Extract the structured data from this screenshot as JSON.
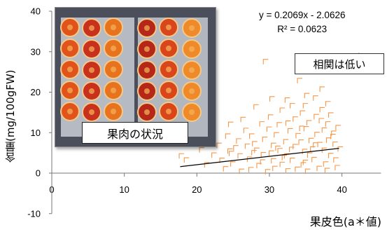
{
  "chart_data": {
    "type": "scatter",
    "ylabel": "含量(mg/100gFW)",
    "xlabel": "果皮色(a＊値)",
    "xlim": [
      0,
      45
    ],
    "ylim": [
      -10,
      40
    ],
    "x_ticks": [
      "0",
      "10",
      "20",
      "30",
      "40"
    ],
    "y_ticks": [
      "-10",
      "0",
      "10",
      "20",
      "30",
      "40"
    ],
    "marker_color": "#f79646",
    "trendline": {
      "equation": "y = 0.2069x - 2.0626",
      "r2": "R² = 0.0623",
      "slope": 0.2069,
      "intercept": -2.0626,
      "x_range": [
        17.7,
        39.6
      ]
    },
    "callout": "相関は低い",
    "photo_label": "果肉の状況",
    "points": [
      [
        29.5,
        27.5
      ],
      [
        34.2,
        22.8
      ],
      [
        37.3,
        20.7
      ],
      [
        30.4,
        18.3
      ],
      [
        32.5,
        18.0
      ],
      [
        35.2,
        19.1
      ],
      [
        36.4,
        18.5
      ],
      [
        33.2,
        16.6
      ],
      [
        28.2,
        16.3
      ],
      [
        35.0,
        16.6
      ],
      [
        38.1,
        17.1
      ],
      [
        31.8,
        15.5
      ],
      [
        34.6,
        14.8
      ],
      [
        37.3,
        15.6
      ],
      [
        26.4,
        13.2
      ],
      [
        30.2,
        13.8
      ],
      [
        33.6,
        13.3
      ],
      [
        36.5,
        13.9
      ],
      [
        38.5,
        14.3
      ],
      [
        24.7,
        12.0
      ],
      [
        29.0,
        12.1
      ],
      [
        32.6,
        12.3
      ],
      [
        35.5,
        12.4
      ],
      [
        38.1,
        12.1
      ],
      [
        22.3,
        10.2
      ],
      [
        26.8,
        10.5
      ],
      [
        30.0,
        10.8
      ],
      [
        32.9,
        10.4
      ],
      [
        35.1,
        10.9
      ],
      [
        37.6,
        10.6
      ],
      [
        39.5,
        11.2
      ],
      [
        24.3,
        9.1
      ],
      [
        27.6,
        9.1
      ],
      [
        31.0,
        9.4
      ],
      [
        34.0,
        9.2
      ],
      [
        36.6,
        9.5
      ],
      [
        38.9,
        9.8
      ],
      [
        21.6,
        8.0
      ],
      [
        25.8,
        7.9
      ],
      [
        29.4,
        8.3
      ],
      [
        32.3,
        7.7
      ],
      [
        35.8,
        8.0
      ],
      [
        38.2,
        8.1
      ],
      [
        23.1,
        6.8
      ],
      [
        27.0,
        6.6
      ],
      [
        30.6,
        6.8
      ],
      [
        33.6,
        6.5
      ],
      [
        36.4,
        6.9
      ],
      [
        39.1,
        7.1
      ],
      [
        20.7,
        5.7
      ],
      [
        24.6,
        5.4
      ],
      [
        28.3,
        5.6
      ],
      [
        31.5,
        5.5
      ],
      [
        34.9,
        5.3
      ],
      [
        37.6,
        5.6
      ],
      [
        39.8,
        5.9
      ],
      [
        22.4,
        4.4
      ],
      [
        26.0,
        4.2
      ],
      [
        29.2,
        4.5
      ],
      [
        32.4,
        4.2
      ],
      [
        35.6,
        4.4
      ],
      [
        38.5,
        4.3
      ],
      [
        18.6,
        3.2
      ],
      [
        23.5,
        3.1
      ],
      [
        27.3,
        3.4
      ],
      [
        30.6,
        3.0
      ],
      [
        33.2,
        3.1
      ],
      [
        36.2,
        3.3
      ],
      [
        39.2,
        3.2
      ],
      [
        21.4,
        2.0
      ],
      [
        25.0,
        2.2
      ],
      [
        28.6,
        1.8
      ],
      [
        31.8,
        2.1
      ],
      [
        34.7,
        2.0
      ],
      [
        37.8,
        2.2
      ],
      [
        24.0,
        1.0
      ],
      [
        27.5,
        0.8
      ],
      [
        30.8,
        1.1
      ],
      [
        33.9,
        0.9
      ],
      [
        36.9,
        1.1
      ],
      [
        39.4,
        1.3
      ],
      [
        17.9,
        4.2
      ],
      [
        26.2,
        0.4
      ],
      [
        29.8,
        0.3
      ],
      [
        32.6,
        0.5
      ],
      [
        35.3,
        0.4
      ],
      [
        38.0,
        0.6
      ],
      [
        25.4,
        6.2
      ],
      [
        28.0,
        7.2
      ],
      [
        31.2,
        6.1
      ],
      [
        34.4,
        7.6
      ],
      [
        37.0,
        7.0
      ],
      [
        29.1,
        2.7
      ],
      [
        32.1,
        3.8
      ],
      [
        35.0,
        2.6
      ],
      [
        30.3,
        4.9
      ],
      [
        33.1,
        5.8
      ],
      [
        36.0,
        5.9
      ],
      [
        27.9,
        5.0
      ],
      [
        24.8,
        4.8
      ],
      [
        38.8,
        9.0
      ],
      [
        37.2,
        12.9
      ],
      [
        34.5,
        11.0
      ],
      [
        31.4,
        11.9
      ]
    ]
  }
}
